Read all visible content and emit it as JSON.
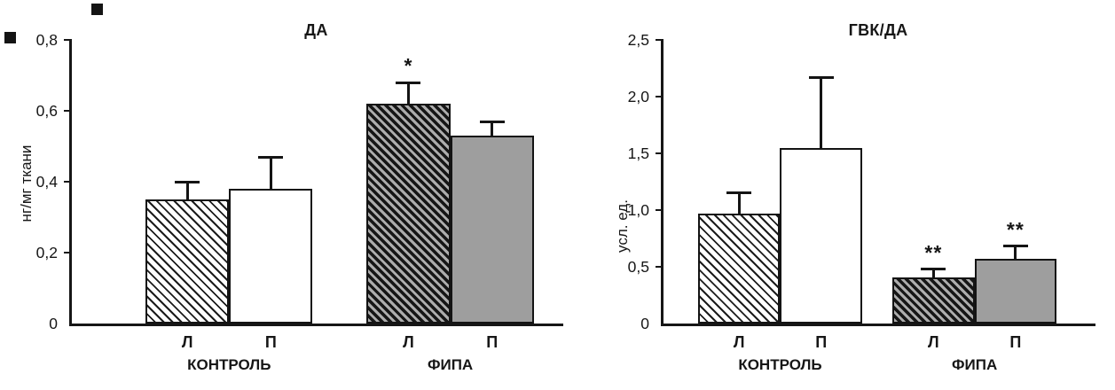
{
  "figure": {
    "background": "#ffffff",
    "ink_color": "#141414",
    "gray_fill": "#9e9e9e"
  },
  "chart_data": [
    {
      "type": "bar",
      "title": "ДА",
      "ylabel": "нг/мг ткани",
      "ylim": [
        0,
        0.8
      ],
      "yticks": [
        0,
        0.2,
        0.4,
        0.6,
        0.8
      ],
      "ytick_labels": [
        "0",
        "0,2",
        "0,4",
        "0,6",
        "0,8"
      ],
      "groups": [
        "КОНТРОЛЬ",
        "ФИПА"
      ],
      "bar_labels": [
        "Л",
        "П",
        "Л",
        "П"
      ],
      "values": [
        0.35,
        0.38,
        0.62,
        0.53
      ],
      "errors_up": [
        0.05,
        0.09,
        0.06,
        0.04
      ],
      "significance": [
        "",
        "",
        "*",
        ""
      ],
      "bar_styles": [
        "hatch-light",
        "plain",
        "hatch-dark",
        "solid-gray"
      ],
      "grid": false,
      "legend": "none",
      "layout": {
        "bar_width_frac": 0.17,
        "group_centers_frac": [
          0.32,
          0.77
        ]
      }
    },
    {
      "type": "bar",
      "title": "ГВК/ДА",
      "ylabel": "усл. ед.",
      "ylim": [
        0,
        2.5
      ],
      "yticks": [
        0,
        0.5,
        1.0,
        1.5,
        2.0,
        2.5
      ],
      "ytick_labels": [
        "0",
        "0,5",
        "1,0",
        "1,5",
        "2,0",
        "2,5"
      ],
      "groups": [
        "КОНТРОЛЬ",
        "ФИПА"
      ],
      "bar_labels": [
        "Л",
        "П",
        "Л",
        "П"
      ],
      "values": [
        0.97,
        1.55,
        0.41,
        0.57
      ],
      "errors_up": [
        0.18,
        0.62,
        0.07,
        0.11
      ],
      "significance": [
        "",
        "",
        "**",
        "**"
      ],
      "bar_styles": [
        "hatch-light",
        "plain",
        "hatch-dark",
        "solid-gray"
      ],
      "grid": false,
      "legend": "none",
      "layout": {
        "bar_width_frac": 0.19,
        "group_centers_frac": [
          0.27,
          0.72
        ]
      }
    }
  ]
}
